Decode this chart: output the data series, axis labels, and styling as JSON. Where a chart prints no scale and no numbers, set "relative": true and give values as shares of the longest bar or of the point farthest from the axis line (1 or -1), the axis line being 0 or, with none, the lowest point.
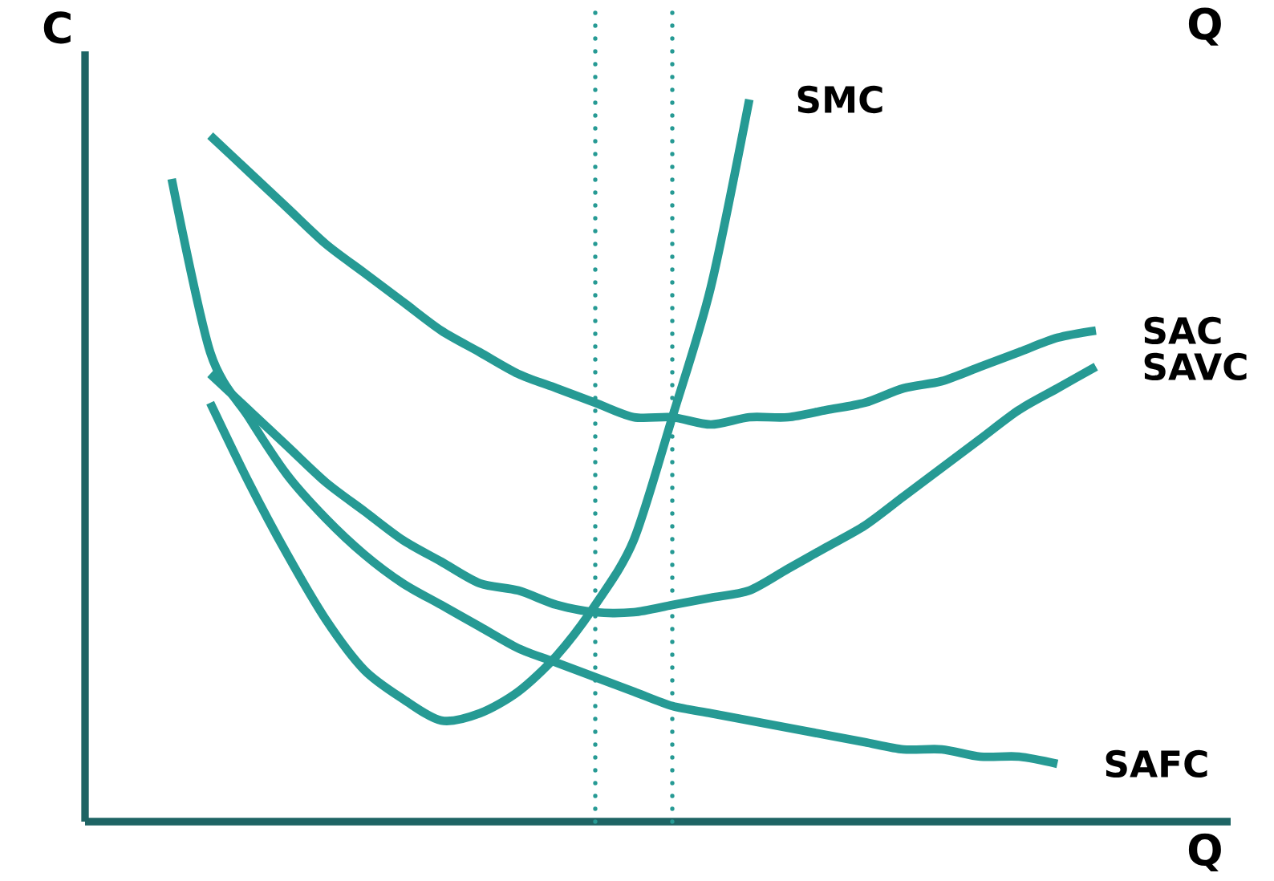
{
  "chart_data": {
    "type": "line",
    "relative": true,
    "xlabel": "Q",
    "ylabel": "C",
    "annotations": [
      "Q"
    ],
    "categories": [
      null,
      null,
      null,
      null,
      null,
      null,
      null,
      null,
      null,
      null,
      null,
      null,
      null,
      null,
      null,
      null,
      null,
      null,
      null,
      null,
      null,
      null,
      null,
      null,
      null,
      null,
      null
    ],
    "series": [
      {
        "name": "SMC",
        "color": "#269a94",
        "values": [
          null,
          null,
          0.58,
          0.47,
          0.37,
          0.28,
          0.21,
          0.17,
          0.14,
          0.15,
          0.18,
          0.23,
          0.3,
          0.39,
          0.56,
          0.74,
          1.0,
          null,
          null,
          null,
          null,
          null,
          null,
          null,
          null,
          null,
          null
        ]
      },
      {
        "name": "SAC",
        "color": "#269a94",
        "values": [
          null,
          null,
          0.95,
          0.9,
          0.85,
          0.8,
          0.76,
          0.72,
          0.68,
          0.65,
          0.62,
          0.6,
          0.58,
          0.56,
          0.56,
          0.55,
          0.56,
          0.56,
          0.57,
          0.58,
          0.6,
          0.61,
          0.63,
          0.65,
          0.67,
          0.68,
          null
        ]
      },
      {
        "name": "SAVC",
        "color": "#269a94",
        "values": [
          null,
          null,
          0.62,
          0.57,
          0.52,
          0.47,
          0.43,
          0.39,
          0.36,
          0.33,
          0.32,
          0.3,
          0.29,
          0.29,
          0.3,
          0.31,
          0.32,
          0.35,
          0.38,
          0.41,
          0.45,
          0.49,
          0.53,
          0.57,
          0.6,
          0.63,
          null
        ]
      },
      {
        "name": "SAFC",
        "color": "#269a94",
        "values": [
          null,
          0.89,
          0.65,
          0.56,
          0.48,
          0.42,
          0.37,
          0.33,
          0.3,
          0.27,
          0.24,
          0.22,
          0.2,
          0.18,
          0.16,
          0.15,
          0.14,
          0.13,
          0.12,
          0.11,
          0.1,
          0.1,
          0.09,
          0.09,
          0.08,
          null,
          null
        ]
      }
    ]
  }
}
